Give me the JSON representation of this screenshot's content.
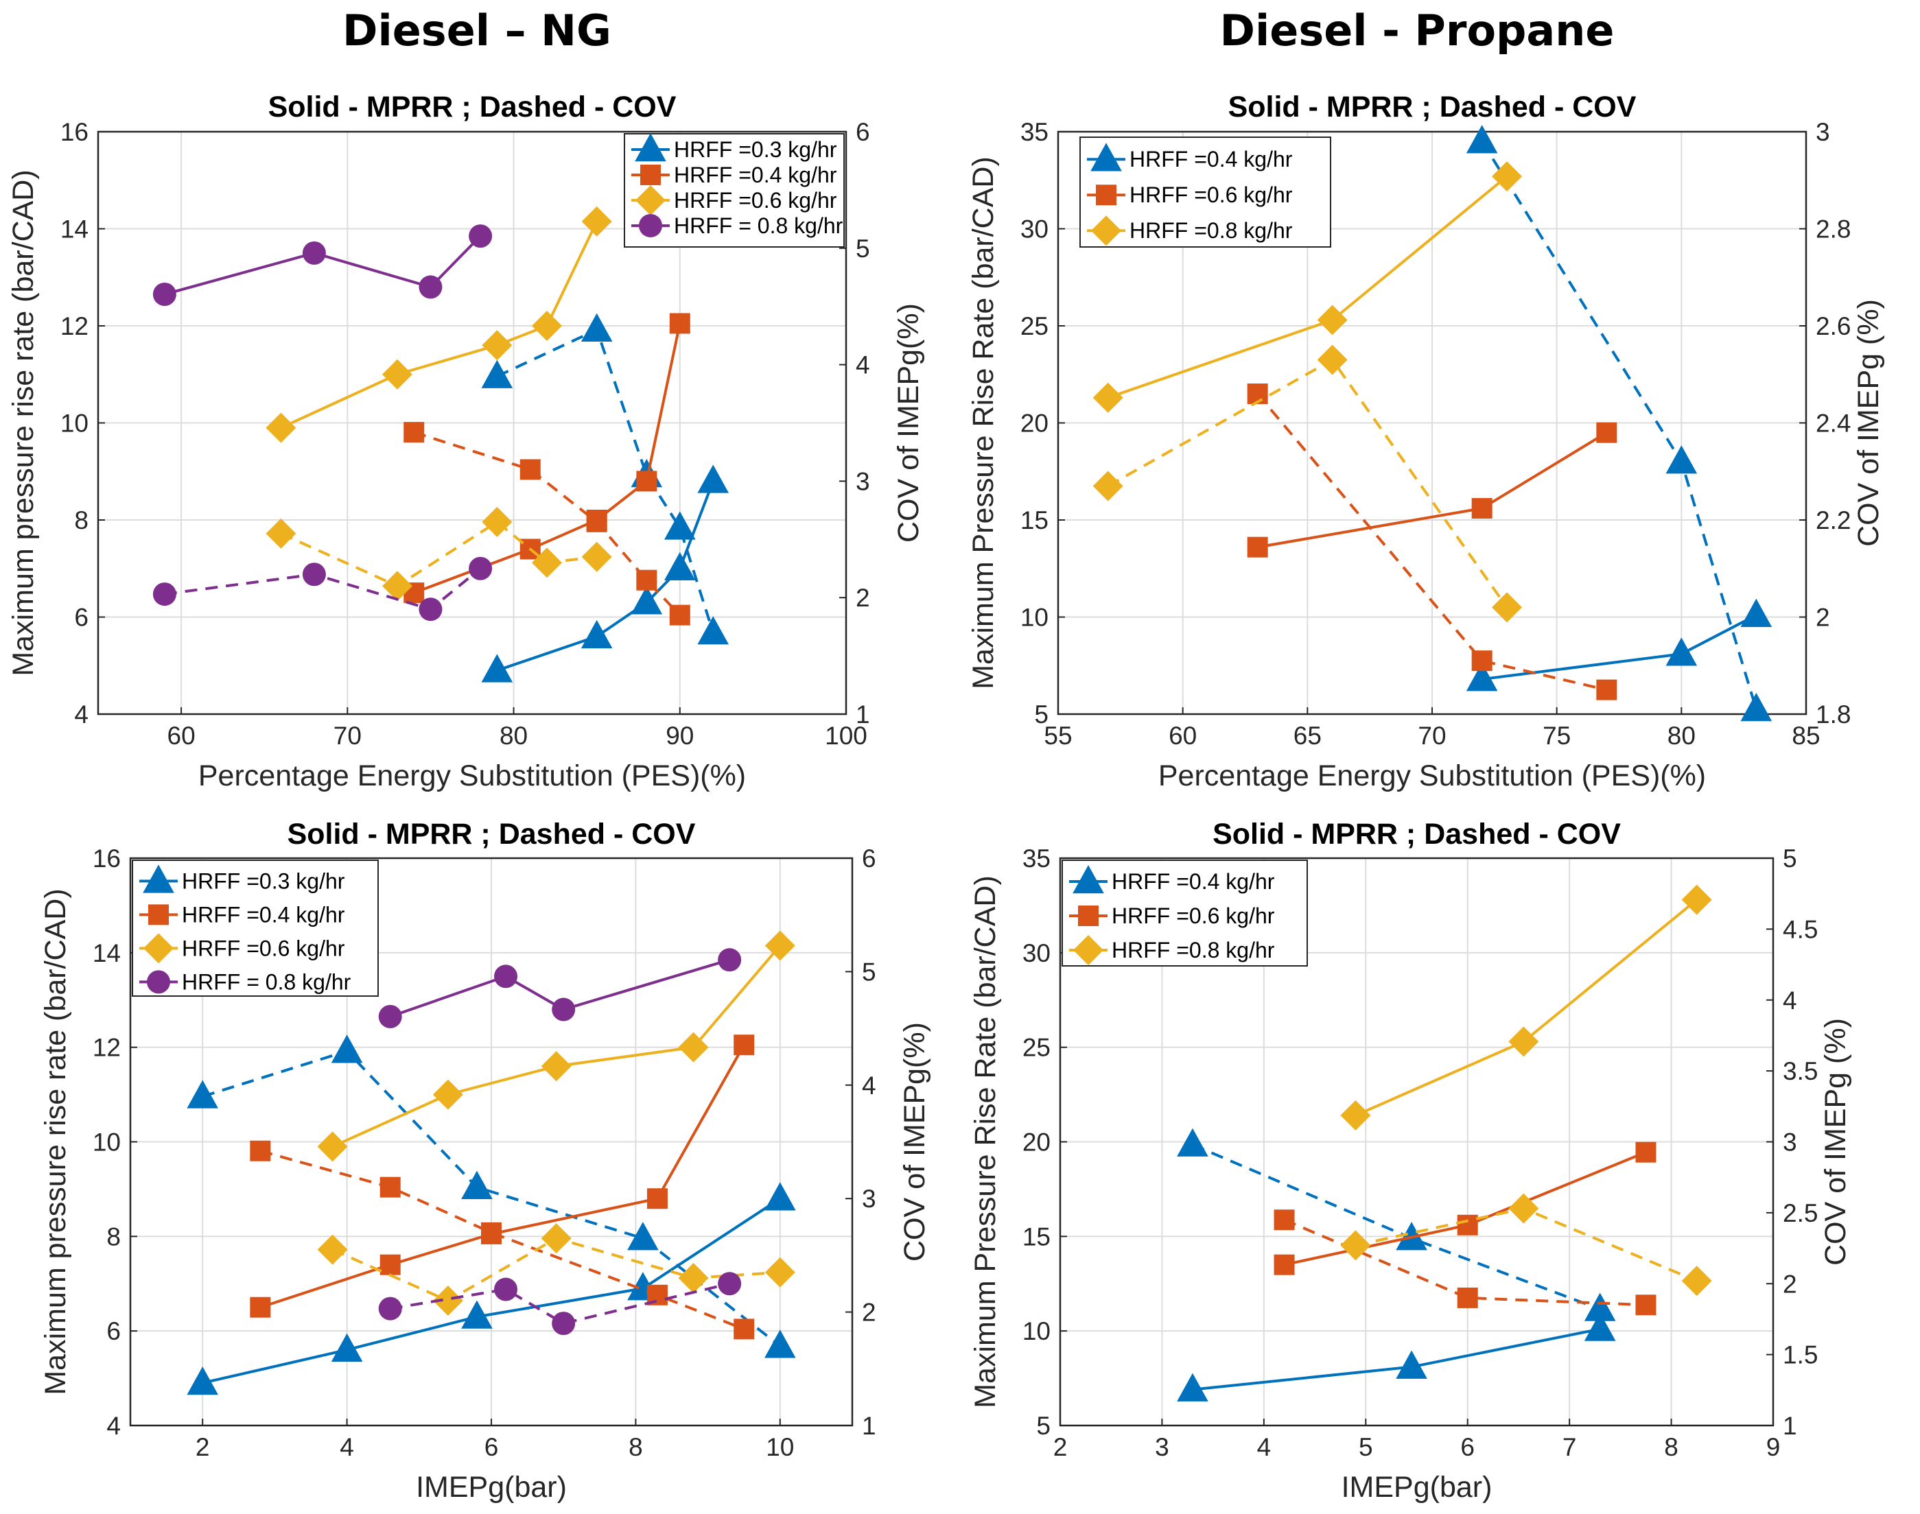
{
  "column_titles": [
    "Diesel – NG",
    "Diesel - Propane"
  ],
  "colors": {
    "blue": "#0072BD",
    "orange": "#D95319",
    "yellow": "#EDB120",
    "purple": "#7E2F8E"
  },
  "chart_data": [
    {
      "id": "ng-pes",
      "type": "line",
      "title": "Solid - MPRR ; Dashed - COV",
      "xlabel": "Percentage Energy Substitution (PES)(%)",
      "ylabel": "Maximum pressure rise rate (bar/CAD)",
      "y2label": "COV of IMEPg(%)",
      "xlim": [
        55,
        100
      ],
      "xticks": [
        60,
        70,
        80,
        90,
        100
      ],
      "ylim": [
        4,
        16
      ],
      "yticks": [
        4,
        6,
        8,
        10,
        12,
        14,
        16
      ],
      "y2lim": [
        1,
        6
      ],
      "y2ticks": [
        1,
        2,
        3,
        4,
        5,
        6
      ],
      "legend_position": "top-right",
      "series": [
        {
          "name": "HRFF =0.3 kg/hr",
          "color": "blue",
          "marker": "triangle",
          "mprr": {
            "x": [
              79,
              85,
              88,
              90,
              92
            ],
            "y": [
              4.9,
              5.6,
              6.3,
              7.0,
              8.8
            ]
          },
          "cov": {
            "x": [
              79,
              85,
              88,
              90,
              92
            ],
            "y": [
              3.9,
              4.3,
              3.05,
              2.6,
              1.7
            ]
          }
        },
        {
          "name": "HRFF =0.4 kg/hr",
          "color": "orange",
          "marker": "square",
          "mprr": {
            "x": [
              74,
              81,
              85,
              88,
              90
            ],
            "y": [
              6.5,
              7.4,
              8.0,
              8.8,
              12.05
            ]
          },
          "cov": {
            "x": [
              74,
              81,
              85,
              88,
              90
            ],
            "y": [
              3.42,
              3.1,
              2.65,
              2.15,
              1.85
            ]
          }
        },
        {
          "name": "HRFF =0.6 kg/hr",
          "color": "yellow",
          "marker": "diamond",
          "mprr": {
            "x": [
              66,
              73,
              79,
              82,
              85
            ],
            "y": [
              9.9,
              11.0,
              11.6,
              12.0,
              14.15
            ]
          },
          "cov": {
            "x": [
              66,
              73,
              79,
              82,
              85
            ],
            "y": [
              2.55,
              2.1,
              2.65,
              2.3,
              2.35
            ]
          }
        },
        {
          "name": "HRFF = 0.8 kg/hr",
          "color": "purple",
          "marker": "circle",
          "mprr": {
            "x": [
              59,
              68,
              75,
              78
            ],
            "y": [
              12.65,
              13.5,
              12.8,
              13.85
            ]
          },
          "cov": {
            "x": [
              59,
              68,
              75,
              78
            ],
            "y": [
              2.03,
              2.2,
              1.9,
              2.25
            ]
          }
        }
      ]
    },
    {
      "id": "propane-pes",
      "type": "line",
      "title": "Solid - MPRR ; Dashed - COV",
      "xlabel": "Percentage Energy Substitution (PES)(%)",
      "ylabel": "Maximum Pressure Rise Rate (bar/CAD)",
      "y2label": "COV of IMEPg (%)",
      "xlim": [
        55,
        85
      ],
      "xticks": [
        55,
        60,
        65,
        70,
        75,
        80,
        85
      ],
      "ylim": [
        5,
        35
      ],
      "yticks": [
        5,
        10,
        15,
        20,
        25,
        30,
        35
      ],
      "y2lim": [
        1.8,
        3.0
      ],
      "y2ticks": [
        1.8,
        2,
        2.2,
        2.4,
        2.6,
        2.8,
        3
      ],
      "legend_position": "top-left",
      "series": [
        {
          "name": "HRFF =0.4 kg/hr",
          "color": "blue",
          "marker": "triangle",
          "mprr": {
            "x": [
              72,
              80,
              83
            ],
            "y": [
              6.8,
              8.1,
              10.1
            ]
          },
          "cov": {
            "x": [
              72,
              80,
              83
            ],
            "y": [
              2.98,
              2.32,
              1.81
            ]
          }
        },
        {
          "name": "HRFF =0.6 kg/hr",
          "color": "orange",
          "marker": "square",
          "mprr": {
            "x": [
              63,
              72,
              77
            ],
            "y": [
              13.6,
              15.6,
              19.5
            ]
          },
          "cov": {
            "x": [
              63,
              72,
              77
            ],
            "y": [
              2.46,
              1.91,
              1.85
            ]
          }
        },
        {
          "name": "HRFF =0.8 kg/hr",
          "color": "yellow",
          "marker": "diamond",
          "mprr": {
            "x": [
              57,
              66,
              73
            ],
            "y": [
              21.3,
              25.3,
              32.7
            ]
          },
          "cov": {
            "x": [
              57,
              66,
              73
            ],
            "y": [
              2.27,
              2.53,
              2.02
            ]
          }
        }
      ]
    },
    {
      "id": "ng-imep",
      "type": "line",
      "title": "Solid - MPRR ; Dashed - COV",
      "xlabel": "IMEPg(bar)",
      "ylabel": "Maximum pressure rise rate (bar/CAD)",
      "y2label": "COV of IMEPg(%)",
      "xlim": [
        1,
        11
      ],
      "xticks": [
        2,
        4,
        6,
        8,
        10
      ],
      "ylim": [
        4,
        16
      ],
      "yticks": [
        4,
        6,
        8,
        10,
        12,
        14,
        16
      ],
      "y2lim": [
        1,
        6
      ],
      "y2ticks": [
        1,
        2,
        3,
        4,
        5,
        6
      ],
      "legend_position": "top-left",
      "series": [
        {
          "name": "HRFF =0.3 kg/hr",
          "color": "blue",
          "marker": "triangle",
          "mprr": {
            "x": [
              2.0,
              4.0,
              5.8,
              8.1,
              10.0
            ],
            "y": [
              4.9,
              5.6,
              6.3,
              6.9,
              8.8
            ]
          },
          "cov": {
            "x": [
              2.0,
              4.0,
              5.8,
              8.1,
              10.0
            ],
            "y": [
              3.9,
              4.3,
              3.1,
              2.65,
              1.7
            ]
          }
        },
        {
          "name": "HRFF =0.4 kg/hr",
          "color": "orange",
          "marker": "square",
          "mprr": {
            "x": [
              2.8,
              4.6,
              6.0,
              8.3,
              9.5
            ],
            "y": [
              6.5,
              7.4,
              8.05,
              8.8,
              12.05
            ]
          },
          "cov": {
            "x": [
              2.8,
              4.6,
              6.0,
              8.3,
              9.5
            ],
            "y": [
              3.42,
              3.1,
              2.7,
              2.15,
              1.85
            ]
          }
        },
        {
          "name": "HRFF =0.6 kg/hr",
          "color": "yellow",
          "marker": "diamond",
          "mprr": {
            "x": [
              3.8,
              5.4,
              6.9,
              8.8,
              10.0
            ],
            "y": [
              9.9,
              11.0,
              11.6,
              12.0,
              14.15
            ]
          },
          "cov": {
            "x": [
              3.8,
              5.4,
              6.9,
              8.8,
              10.0
            ],
            "y": [
              2.55,
              2.1,
              2.65,
              2.3,
              2.35
            ]
          }
        },
        {
          "name": "HRFF = 0.8 kg/hr",
          "color": "purple",
          "marker": "circle",
          "mprr": {
            "x": [
              4.6,
              6.2,
              7.0,
              9.3
            ],
            "y": [
              12.65,
              13.5,
              12.8,
              13.85
            ]
          },
          "cov": {
            "x": [
              4.6,
              6.2,
              7.0,
              9.3
            ],
            "y": [
              2.03,
              2.2,
              1.9,
              2.25
            ]
          }
        }
      ]
    },
    {
      "id": "propane-imep",
      "type": "line",
      "title": "Solid - MPRR ; Dashed - COV",
      "xlabel": "IMEPg(bar)",
      "ylabel": "Maximum Pressure Rise Rate (bar/CAD)",
      "y2label": "COV of IMEPg (%)",
      "xlim": [
        2,
        9
      ],
      "xticks": [
        2,
        3,
        4,
        5,
        6,
        7,
        8,
        9
      ],
      "ylim": [
        5,
        35
      ],
      "yticks": [
        5,
        10,
        15,
        20,
        25,
        30,
        35
      ],
      "y2lim": [
        1,
        5
      ],
      "y2ticks": [
        1,
        1.5,
        2,
        2.5,
        3,
        3.5,
        4,
        4.5,
        5
      ],
      "legend_position": "top-left",
      "series": [
        {
          "name": "HRFF =0.4 kg/hr",
          "color": "blue",
          "marker": "triangle",
          "mprr": {
            "x": [
              3.3,
              5.45,
              7.3
            ],
            "y": [
              6.9,
              8.1,
              10.1
            ]
          },
          "cov": {
            "x": [
              3.3,
              5.45,
              7.3
            ],
            "y": [
              2.98,
              2.32,
              1.82
            ]
          }
        },
        {
          "name": "HRFF =0.6 kg/hr",
          "color": "orange",
          "marker": "square",
          "mprr": {
            "x": [
              4.2,
              6.0,
              7.75
            ],
            "y": [
              13.5,
              15.6,
              19.45
            ]
          },
          "cov": {
            "x": [
              4.2,
              6.0,
              7.75
            ],
            "y": [
              2.45,
              1.9,
              1.85
            ]
          }
        },
        {
          "name": "HRFF =0.8 kg/hr",
          "color": "yellow",
          "marker": "diamond",
          "mprr": {
            "x": [
              4.9,
              6.55,
              8.25
            ],
            "y": [
              21.4,
              25.3,
              32.8
            ]
          },
          "cov": {
            "x": [
              4.9,
              6.55,
              8.25
            ],
            "y": [
              2.27,
              2.53,
              2.02
            ]
          }
        }
      ]
    }
  ]
}
